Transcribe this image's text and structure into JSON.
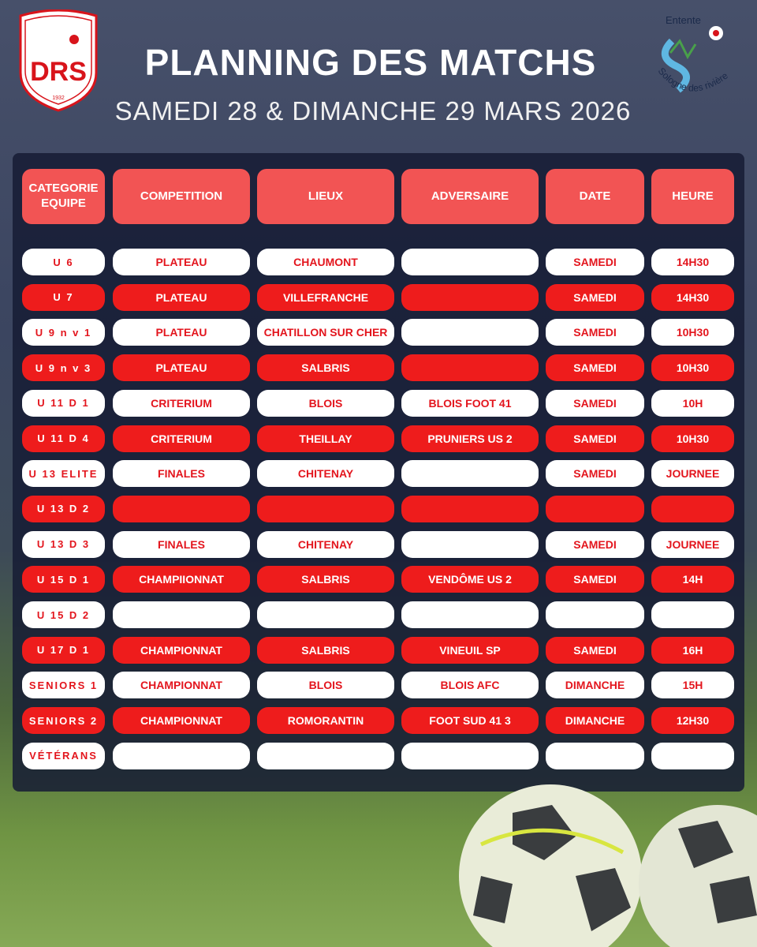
{
  "header": {
    "title": "PLANNING DES MATCHS",
    "subtitle": "SAMEDI 28 & DIMANCHE 29 MARS 2026"
  },
  "logos": {
    "club": {
      "name": "DRS",
      "year": "1932"
    },
    "partner": {
      "top": "Entente",
      "bottom": "Sologne des rivières"
    }
  },
  "table": {
    "columns": [
      "CATEGORIE EQUIPE",
      "COMPETITION",
      "LIEUX",
      "ADVERSAIRE",
      "DATE",
      "HEURE"
    ],
    "rows": [
      [
        "U 6",
        "PLATEAU",
        "CHAUMONT",
        null,
        "SAMEDI",
        "14H30"
      ],
      [
        "U 7",
        "PLATEAU",
        "VILLEFRANCHE",
        null,
        "SAMEDI",
        "14H30"
      ],
      [
        "U 9 n v 1",
        "PLATEAU",
        "CHATILLON SUR CHER",
        null,
        "SAMEDI",
        "10H30"
      ],
      [
        "U 9 n v 3",
        "PLATEAU",
        "SALBRIS",
        null,
        "SAMEDI",
        "10H30"
      ],
      [
        "U 11 D 1",
        "CRITERIUM",
        "BLOIS",
        "BLOIS FOOT 41",
        "SAMEDI",
        "10H"
      ],
      [
        "U 11 D 4",
        "CRITERIUM",
        "THEILLAY",
        "PRUNIERS US 2",
        "SAMEDI",
        "10H30"
      ],
      [
        "U 13 ELITE",
        "FINALES",
        "CHITENAY",
        null,
        "SAMEDI",
        "JOURNEE"
      ],
      [
        "U 13 D 2",
        null,
        null,
        null,
        null,
        null
      ],
      [
        "U 13 D 3",
        "FINALES",
        "CHITENAY",
        null,
        "SAMEDI",
        "JOURNEE"
      ],
      [
        "U 15 D 1",
        "CHAMPIIONNAT",
        "SALBRIS",
        "VENDÔME US 2",
        "SAMEDI",
        "14H"
      ],
      [
        "U 15 D 2",
        null,
        null,
        null,
        null,
        null
      ],
      [
        "U 17 D 1",
        "CHAMPIONNAT",
        "SALBRIS",
        "VINEUIL SP",
        "SAMEDI",
        "16H"
      ],
      [
        "SENIORS 1",
        "CHAMPIONNAT",
        "BLOIS",
        "BLOIS AFC",
        "DIMANCHE",
        "15H"
      ],
      [
        "SENIORS 2",
        "CHAMPIONNAT",
        "ROMORANTIN",
        "FOOT SUD 41 3",
        "DIMANCHE",
        "12H30"
      ],
      [
        "VÉTÉRANS",
        null,
        null,
        null,
        null,
        null
      ]
    ]
  }
}
